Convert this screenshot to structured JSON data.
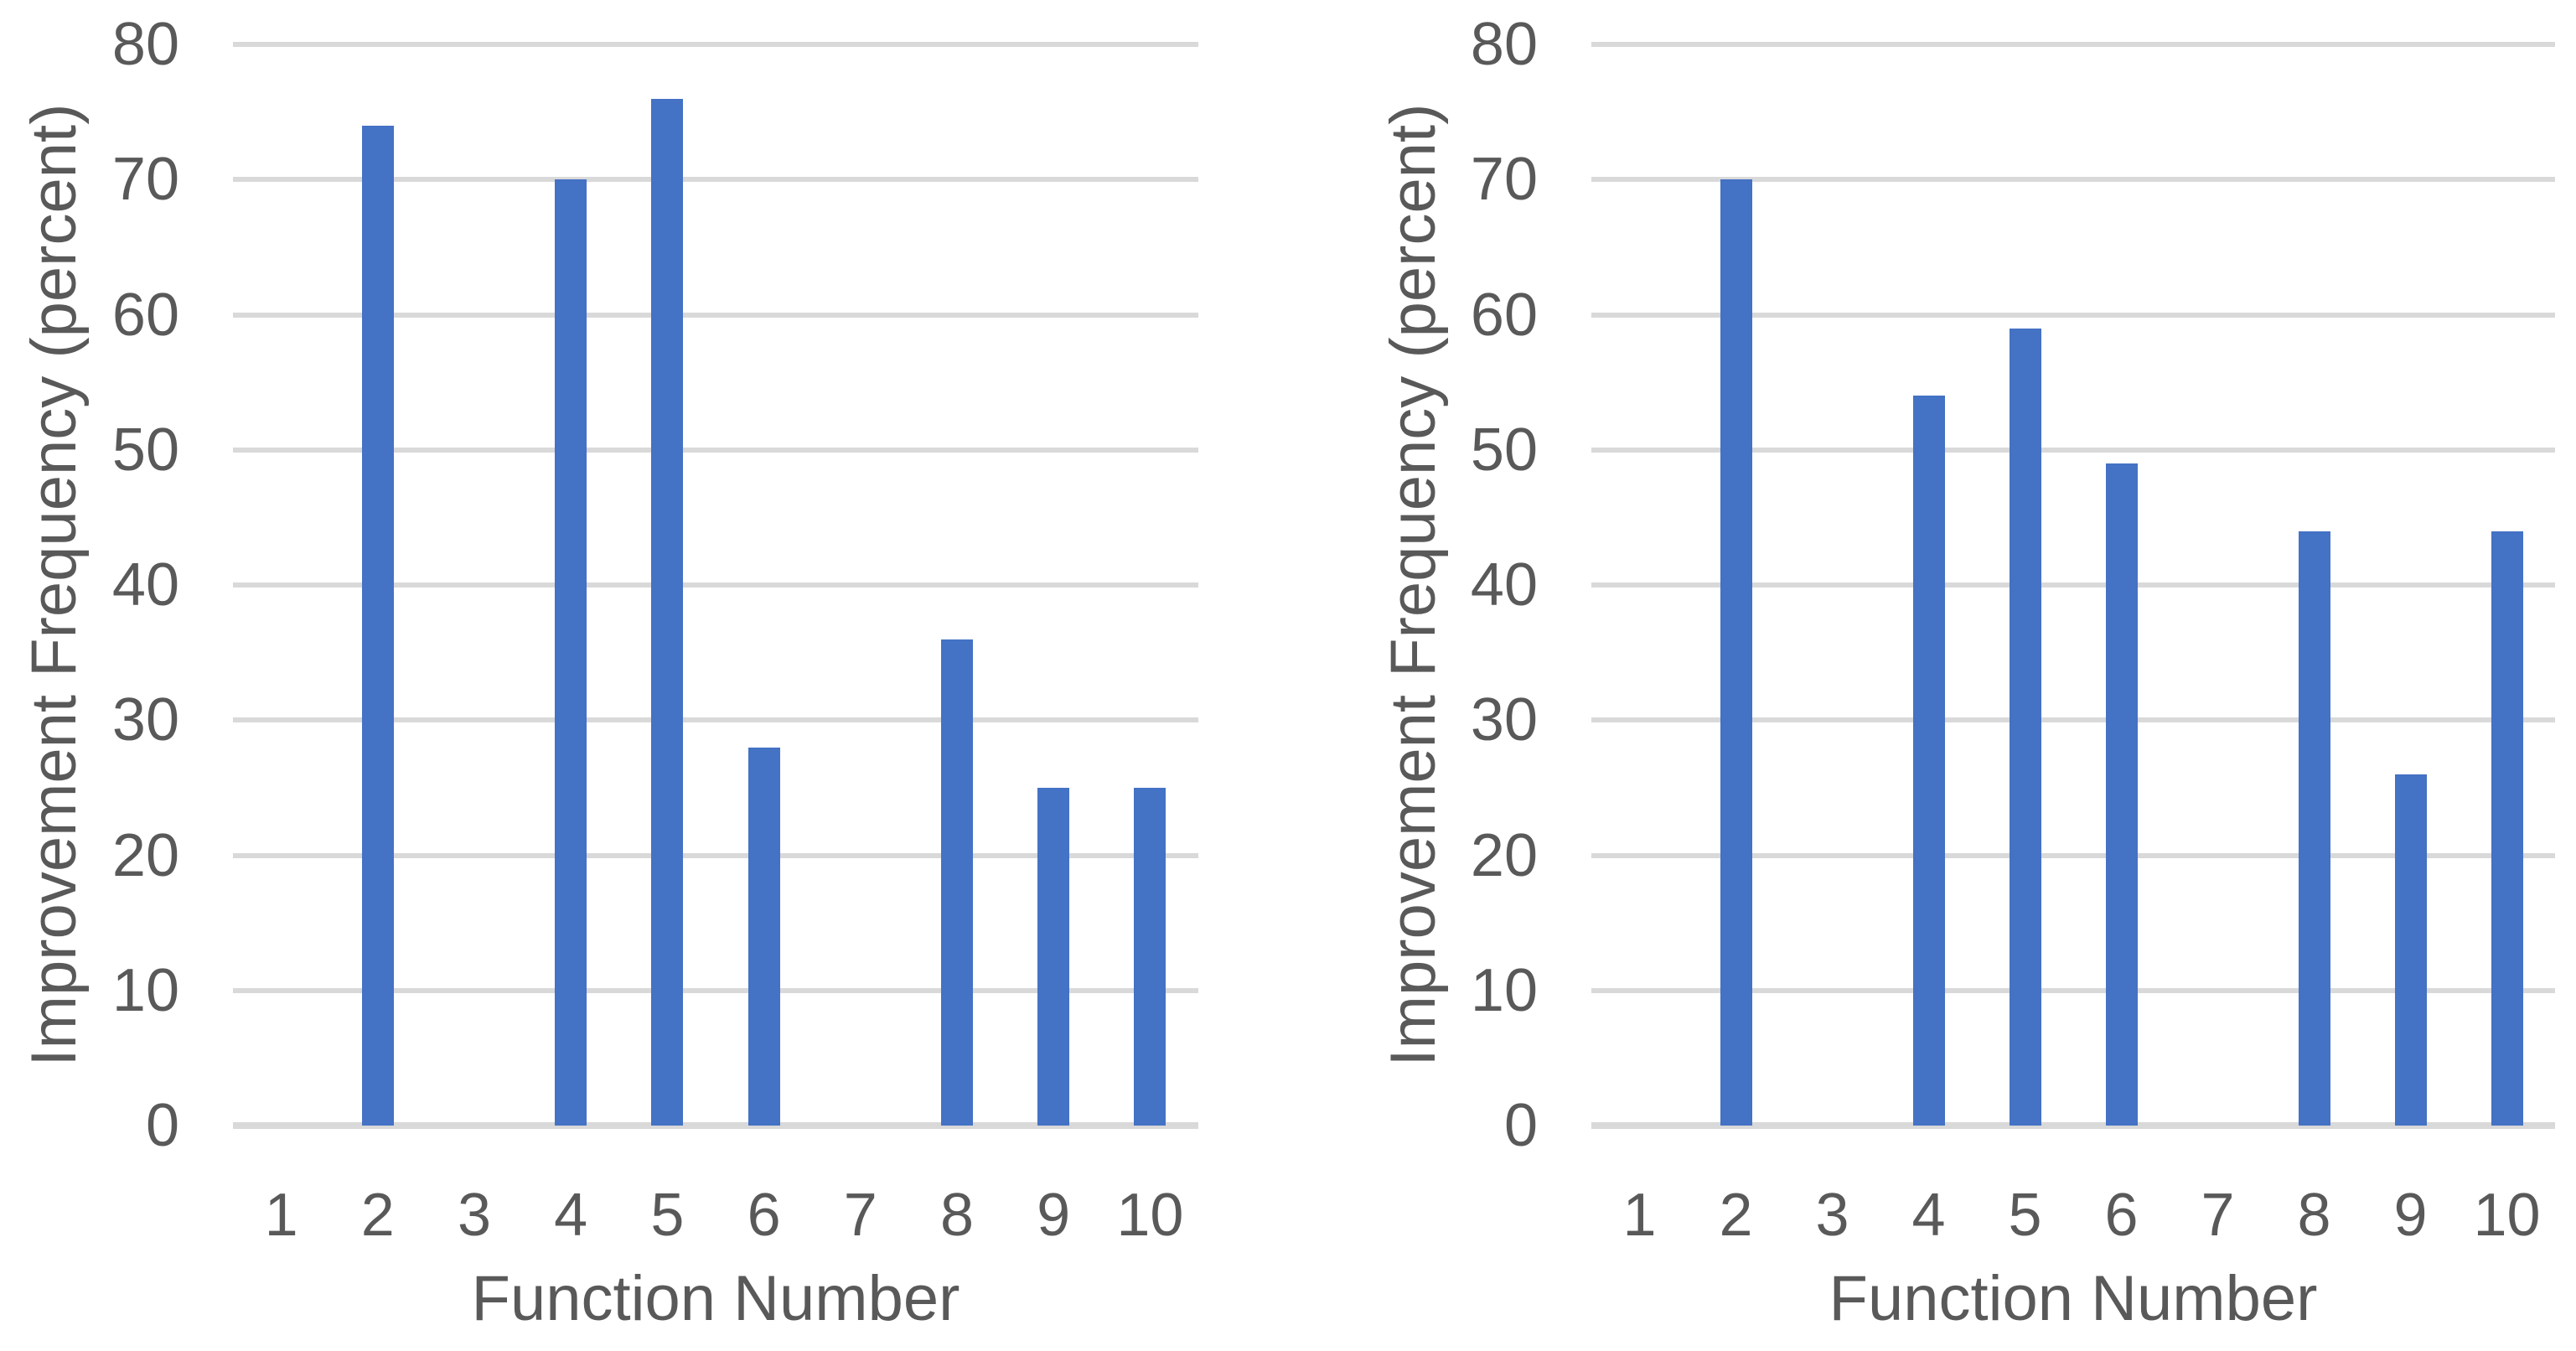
{
  "page": {
    "background": "#FFFFFF"
  },
  "chart_data": [
    {
      "type": "bar",
      "title": "",
      "xlabel": "Function Number",
      "ylabel": "Improvement Frequency (percent)",
      "categories": [
        "1",
        "2",
        "3",
        "4",
        "5",
        "6",
        "7",
        "8",
        "9",
        "10"
      ],
      "values": [
        0,
        74,
        0,
        70,
        76,
        28,
        0,
        36,
        25,
        25
      ],
      "ylim": [
        0,
        80
      ],
      "ytick_step": 10,
      "yticks": [
        0,
        10,
        20,
        30,
        40,
        50,
        60,
        70,
        80
      ],
      "grid": true,
      "legend": false,
      "bar_color": "#4472C4",
      "gridline_color": "#D9D9D9",
      "axis_text_color": "#595959"
    },
    {
      "type": "bar",
      "title": "",
      "xlabel": "Function Number",
      "ylabel": "Improvement Frequency (percent)",
      "categories": [
        "1",
        "2",
        "3",
        "4",
        "5",
        "6",
        "7",
        "8",
        "9",
        "10"
      ],
      "values": [
        0,
        70,
        0,
        54,
        59,
        49,
        0,
        44,
        26,
        44
      ],
      "ylim": [
        0,
        80
      ],
      "ytick_step": 10,
      "yticks": [
        0,
        10,
        20,
        30,
        40,
        50,
        60,
        70,
        80
      ],
      "grid": true,
      "legend": false,
      "bar_color": "#4472C4",
      "gridline_color": "#D9D9D9",
      "axis_text_color": "#595959"
    }
  ]
}
